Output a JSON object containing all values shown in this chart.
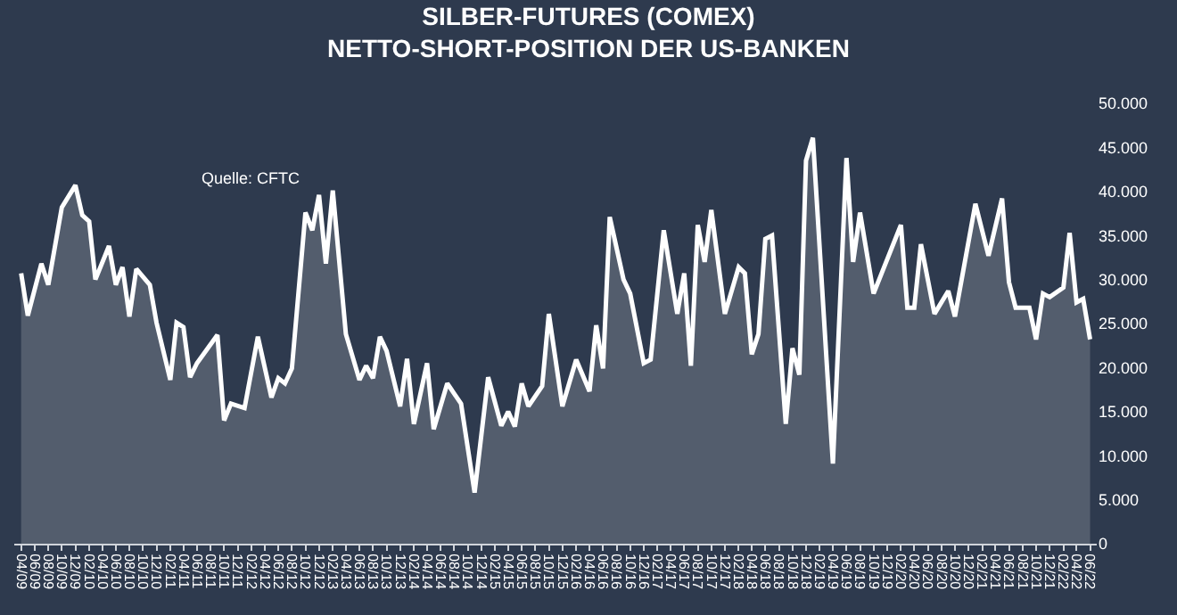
{
  "chart_data": {
    "type": "area",
    "title": "SILBER-FUTURES (COMEX)\nNETTO-SHORT-POSITION DER US-BANKEN",
    "annotations": [
      "Quelle: CFTC"
    ],
    "x": [
      "2009-04",
      "2009-05",
      "2009-07",
      "2009-08",
      "2009-10",
      "2009-12",
      "2010-01",
      "2010-02",
      "2010-03",
      "2010-05",
      "2010-06",
      "2010-07",
      "2010-08",
      "2010-09",
      "2010-11",
      "2010-12",
      "2011-02",
      "2011-03",
      "2011-04",
      "2011-05",
      "2011-06",
      "2011-09",
      "2011-10",
      "2011-11",
      "2012-01",
      "2012-03",
      "2012-05",
      "2012-06",
      "2012-07",
      "2012-08",
      "2012-10",
      "2012-11",
      "2012-12",
      "2013-01",
      "2013-02",
      "2013-04",
      "2013-06",
      "2013-07",
      "2013-08",
      "2013-09",
      "2013-10",
      "2013-12",
      "2014-01",
      "2014-02",
      "2014-04",
      "2014-05",
      "2014-07",
      "2014-09",
      "2014-11",
      "2015-01",
      "2015-03",
      "2015-04",
      "2015-05",
      "2015-06",
      "2015-07",
      "2015-09",
      "2015-10",
      "2015-12",
      "2016-02",
      "2016-04",
      "2016-05",
      "2016-06",
      "2016-07",
      "2016-09",
      "2016-10",
      "2016-12",
      "2017-01",
      "2017-03",
      "2017-05",
      "2017-06",
      "2017-07",
      "2017-08",
      "2017-09",
      "2017-10",
      "2017-12",
      "2018-02",
      "2018-03",
      "2018-04",
      "2018-05",
      "2018-06",
      "2018-07",
      "2018-09",
      "2018-10",
      "2018-11",
      "2018-12",
      "2019-01",
      "2019-04",
      "2019-06",
      "2019-07",
      "2019-08",
      "2019-10",
      "2020-02",
      "2020-03",
      "2020-04",
      "2020-05",
      "2020-07",
      "2020-09",
      "2020-10",
      "2021-01",
      "2021-03",
      "2021-05",
      "2021-06",
      "2021-07",
      "2021-09",
      "2021-10",
      "2021-11",
      "2021-12",
      "2022-02",
      "2022-03",
      "2022-04",
      "2022-05",
      "2022-06"
    ],
    "series": [
      {
        "color": "#ffffff",
        "values": [
          30700,
          25900,
          31800,
          29400,
          38200,
          40700,
          37300,
          36600,
          30000,
          33800,
          29400,
          31400,
          25800,
          31200,
          29400,
          25100,
          18600,
          25100,
          24600,
          18900,
          20500,
          23700,
          14000,
          15900,
          15400,
          23500,
          16600,
          18800,
          18200,
          19900,
          37600,
          35600,
          39600,
          31800,
          40100,
          23800,
          18600,
          20200,
          18800,
          23500,
          21900,
          15600,
          21000,
          13600,
          20500,
          13000,
          18200,
          15900,
          5800,
          18900,
          13400,
          15000,
          13300,
          18200,
          15600,
          17900,
          26100,
          15600,
          20900,
          17300,
          24800,
          19900,
          37100,
          30000,
          28400,
          20500,
          20900,
          35600,
          26100,
          30700,
          20200,
          36200,
          32000,
          37900,
          26100,
          31400,
          30700,
          21500,
          23800,
          34600,
          35000,
          13600,
          22200,
          19200,
          43500,
          46100,
          9100,
          43800,
          32000,
          37600,
          28400,
          36200,
          26800,
          26800,
          34000,
          26100,
          28700,
          25800,
          38600,
          32700,
          39200,
          29700,
          26800,
          26800,
          23200,
          28400,
          28000,
          29100,
          35300,
          27400,
          27800,
          23200
        ]
      }
    ],
    "xlim": [
      "2009-03",
      "2022-07"
    ],
    "xticks": [
      {
        "value": "2009-04",
        "label": "04/09"
      },
      {
        "value": "2009-06",
        "label": "06/09"
      },
      {
        "value": "2009-08",
        "label": "08/09"
      },
      {
        "value": "2009-10",
        "label": "10/09"
      },
      {
        "value": "2009-12",
        "label": "12/09"
      },
      {
        "value": "2010-02",
        "label": "02/10"
      },
      {
        "value": "2010-04",
        "label": "04/10"
      },
      {
        "value": "2010-06",
        "label": "06/10"
      },
      {
        "value": "2010-08",
        "label": "08/10"
      },
      {
        "value": "2010-10",
        "label": "10/10"
      },
      {
        "value": "2010-12",
        "label": "12/10"
      },
      {
        "value": "2011-02",
        "label": "02/11"
      },
      {
        "value": "2011-04",
        "label": "04/11"
      },
      {
        "value": "2011-06",
        "label": "06/11"
      },
      {
        "value": "2011-08",
        "label": "08/11"
      },
      {
        "value": "2011-10",
        "label": "10/11"
      },
      {
        "value": "2011-12",
        "label": "12/11"
      },
      {
        "value": "2012-02",
        "label": "02/12"
      },
      {
        "value": "2012-04",
        "label": "04/12"
      },
      {
        "value": "2012-06",
        "label": "06/12"
      },
      {
        "value": "2012-08",
        "label": "08/12"
      },
      {
        "value": "2012-10",
        "label": "10/12"
      },
      {
        "value": "2012-12",
        "label": "12/12"
      },
      {
        "value": "2013-02",
        "label": "02/13"
      },
      {
        "value": "2013-04",
        "label": "04/13"
      },
      {
        "value": "2013-06",
        "label": "06/13"
      },
      {
        "value": "2013-08",
        "label": "08/13"
      },
      {
        "value": "2013-10",
        "label": "10/13"
      },
      {
        "value": "2013-12",
        "label": "12/13"
      },
      {
        "value": "2014-02",
        "label": "02/14"
      },
      {
        "value": "2014-04",
        "label": "04/14"
      },
      {
        "value": "2014-06",
        "label": "06/14"
      },
      {
        "value": "2014-08",
        "label": "08/14"
      },
      {
        "value": "2014-10",
        "label": "10/14"
      },
      {
        "value": "2014-12",
        "label": "12/14"
      },
      {
        "value": "2015-02",
        "label": "02/15"
      },
      {
        "value": "2015-04",
        "label": "04/15"
      },
      {
        "value": "2015-06",
        "label": "06/15"
      },
      {
        "value": "2015-08",
        "label": "08/15"
      },
      {
        "value": "2015-10",
        "label": "10/15"
      },
      {
        "value": "2015-12",
        "label": "12/15"
      },
      {
        "value": "2016-02",
        "label": "02/16"
      },
      {
        "value": "2016-04",
        "label": "04/16"
      },
      {
        "value": "2016-06",
        "label": "06/16"
      },
      {
        "value": "2016-08",
        "label": "08/16"
      },
      {
        "value": "2016-10",
        "label": "10/16"
      },
      {
        "value": "2016-12",
        "label": "12/16"
      },
      {
        "value": "2017-02",
        "label": "02/17"
      },
      {
        "value": "2017-04",
        "label": "04/17"
      },
      {
        "value": "2017-06",
        "label": "06/17"
      },
      {
        "value": "2017-08",
        "label": "08/17"
      },
      {
        "value": "2017-10",
        "label": "10/17"
      },
      {
        "value": "2017-12",
        "label": "12/17"
      },
      {
        "value": "2018-02",
        "label": "02/18"
      },
      {
        "value": "2018-04",
        "label": "04/18"
      },
      {
        "value": "2018-06",
        "label": "06/18"
      },
      {
        "value": "2018-08",
        "label": "08/18"
      },
      {
        "value": "2018-10",
        "label": "10/18"
      },
      {
        "value": "2018-12",
        "label": "12/18"
      },
      {
        "value": "2019-02",
        "label": "02/19"
      },
      {
        "value": "2019-04",
        "label": "04/19"
      },
      {
        "value": "2019-06",
        "label": "06/19"
      },
      {
        "value": "2019-08",
        "label": "08/19"
      },
      {
        "value": "2019-10",
        "label": "10/19"
      },
      {
        "value": "2019-12",
        "label": "12/19"
      },
      {
        "value": "2020-02",
        "label": "02/20"
      },
      {
        "value": "2020-04",
        "label": "04/20"
      },
      {
        "value": "2020-06",
        "label": "06/20"
      },
      {
        "value": "2020-08",
        "label": "08/20"
      },
      {
        "value": "2020-10",
        "label": "10/20"
      },
      {
        "value": "2020-12",
        "label": "12/20"
      },
      {
        "value": "2021-02",
        "label": "02/21"
      },
      {
        "value": "2021-04",
        "label": "04/21"
      },
      {
        "value": "2021-06",
        "label": "06/21"
      },
      {
        "value": "2021-08",
        "label": "08/21"
      },
      {
        "value": "2021-10",
        "label": "10/21"
      },
      {
        "value": "2021-12",
        "label": "12/21"
      },
      {
        "value": "2022-02",
        "label": "02/22"
      },
      {
        "value": "2022-04",
        "label": "04/22"
      },
      {
        "value": "2022-06",
        "label": "06/22"
      }
    ],
    "ylim": [
      0,
      50000
    ],
    "yticks": [
      {
        "value": 0,
        "label": "0"
      },
      {
        "value": 5000,
        "label": "5.000"
      },
      {
        "value": 10000,
        "label": "10.000"
      },
      {
        "value": 15000,
        "label": "15.000"
      },
      {
        "value": 20000,
        "label": "20.000"
      },
      {
        "value": 25000,
        "label": "25.000"
      },
      {
        "value": 30000,
        "label": "30.000"
      },
      {
        "value": 35000,
        "label": "35.000"
      },
      {
        "value": 40000,
        "label": "40.000"
      },
      {
        "value": 45000,
        "label": "45.000"
      },
      {
        "value": 50000,
        "label": "50.000"
      }
    ],
    "grid": false
  }
}
